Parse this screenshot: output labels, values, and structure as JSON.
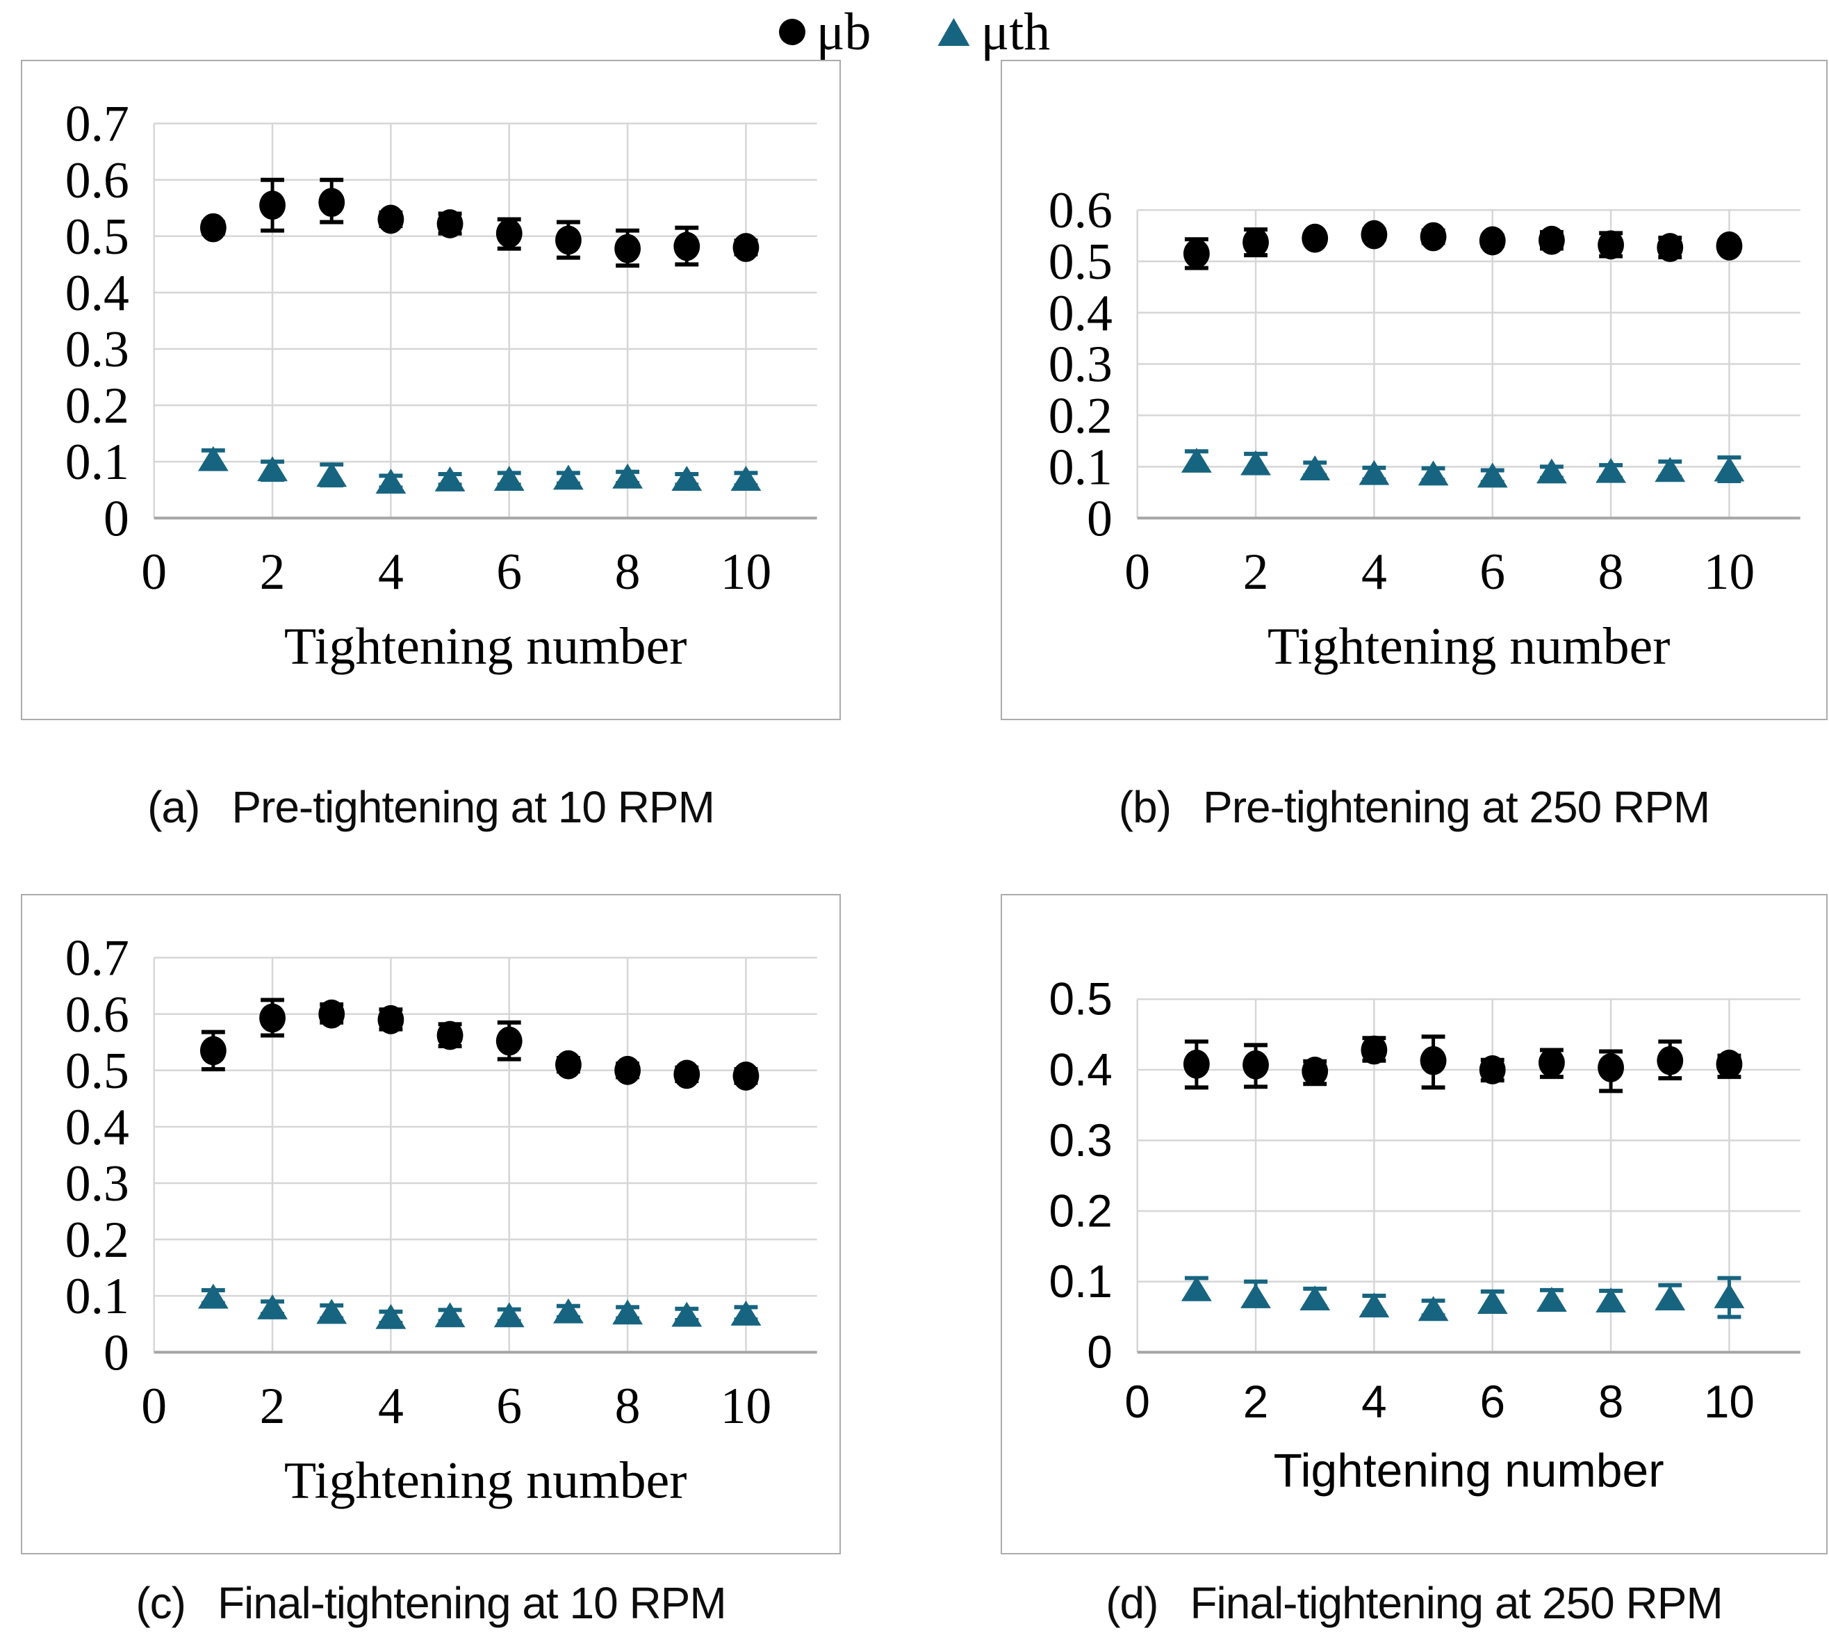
{
  "colors": {
    "mu_b": "#000000",
    "mu_th": "#176480",
    "grid": "#d6d6d6",
    "axis": "#a6a6a6",
    "box_border": "#ababab"
  },
  "legend": {
    "items": [
      {
        "label": "μb",
        "marker": "circle",
        "color": "#000000"
      },
      {
        "label": "μth",
        "marker": "triangle",
        "color": "#176480"
      }
    ]
  },
  "chart_data": [
    {
      "id": "a",
      "type": "scatter",
      "caption_tag": "(a)",
      "caption_text": "Pre-tightening at 10 RPM",
      "xlabel": "Tightening number",
      "font": "serif",
      "plot_top": 90,
      "x": [
        1,
        2,
        3,
        4,
        5,
        6,
        7,
        8,
        9,
        10
      ],
      "xlim": [
        0,
        11.2
      ],
      "ylim": [
        0,
        0.7
      ],
      "xticks": [
        "0",
        "2",
        "4",
        "6",
        "8",
        "10"
      ],
      "yticks": [
        "0",
        "0.1",
        "0.2",
        "0.3",
        "0.4",
        "0.5",
        "0.6",
        "0.7"
      ],
      "series": [
        {
          "name": "μb",
          "marker": "circle",
          "color": "#000000",
          "values": [
            0.515,
            0.555,
            0.56,
            0.53,
            0.522,
            0.505,
            0.493,
            0.478,
            0.482,
            0.48
          ],
          "err_low": [
            0.505,
            0.51,
            0.525,
            0.518,
            0.505,
            0.478,
            0.462,
            0.448,
            0.45,
            0.468
          ],
          "err_high": [
            0.525,
            0.6,
            0.6,
            0.542,
            0.54,
            0.53,
            0.525,
            0.51,
            0.515,
            0.492
          ]
        },
        {
          "name": "μth",
          "marker": "triangle",
          "color": "#176480",
          "values": [
            0.103,
            0.085,
            0.075,
            0.063,
            0.067,
            0.068,
            0.07,
            0.072,
            0.068,
            0.068
          ],
          "err_low": [
            0.09,
            0.068,
            0.058,
            0.054,
            0.059,
            0.059,
            0.061,
            0.062,
            0.059,
            0.058
          ],
          "err_high": [
            0.12,
            0.1,
            0.095,
            0.075,
            0.078,
            0.08,
            0.08,
            0.082,
            0.078,
            0.08
          ]
        }
      ]
    },
    {
      "id": "b",
      "type": "scatter",
      "caption_tag": "(b)",
      "caption_text": "Pre-tightening at 250 RPM",
      "xlabel": "Tightening number",
      "font": "serif",
      "plot_top": 215,
      "x": [
        1,
        2,
        3,
        4,
        5,
        6,
        7,
        8,
        9,
        10
      ],
      "xlim": [
        0,
        11.2
      ],
      "ylim": [
        0,
        0.6
      ],
      "xticks": [
        "0",
        "2",
        "4",
        "6",
        "8",
        "10"
      ],
      "yticks": [
        "0",
        "0.1",
        "0.2",
        "0.3",
        "0.4",
        "0.5",
        "0.6"
      ],
      "series": [
        {
          "name": "μb",
          "marker": "circle",
          "color": "#000000",
          "values": [
            0.515,
            0.537,
            0.545,
            0.552,
            0.548,
            0.54,
            0.541,
            0.532,
            0.527,
            0.53
          ],
          "err_low": [
            0.487,
            0.512,
            0.537,
            0.542,
            0.536,
            0.53,
            0.525,
            0.51,
            0.508,
            0.52
          ],
          "err_high": [
            0.543,
            0.562,
            0.553,
            0.562,
            0.56,
            0.55,
            0.557,
            0.555,
            0.546,
            0.54
          ]
        },
        {
          "name": "μth",
          "marker": "triangle",
          "color": "#176480",
          "values": [
            0.11,
            0.105,
            0.095,
            0.086,
            0.085,
            0.081,
            0.089,
            0.09,
            0.092,
            0.093
          ],
          "err_low": [
            0.095,
            0.088,
            0.083,
            0.075,
            0.074,
            0.07,
            0.078,
            0.078,
            0.08,
            0.072
          ],
          "err_high": [
            0.13,
            0.125,
            0.108,
            0.098,
            0.097,
            0.093,
            0.1,
            0.103,
            0.11,
            0.118
          ]
        }
      ]
    },
    {
      "id": "c",
      "type": "scatter",
      "caption_tag": "(c)",
      "caption_text": "Final-tightening at 10 RPM",
      "xlabel": "Tightening number",
      "font": "serif",
      "plot_top": 90,
      "x": [
        1,
        2,
        3,
        4,
        5,
        6,
        7,
        8,
        9,
        10
      ],
      "xlim": [
        0,
        11.2
      ],
      "ylim": [
        0,
        0.7
      ],
      "xticks": [
        "0",
        "2",
        "4",
        "6",
        "8",
        "10"
      ],
      "yticks": [
        "0",
        "0.1",
        "0.2",
        "0.3",
        "0.4",
        "0.5",
        "0.6",
        "0.7"
      ],
      "series": [
        {
          "name": "μb",
          "marker": "circle",
          "color": "#000000",
          "values": [
            0.535,
            0.593,
            0.6,
            0.59,
            0.562,
            0.552,
            0.51,
            0.5,
            0.493,
            0.49
          ],
          "err_low": [
            0.502,
            0.562,
            0.585,
            0.573,
            0.543,
            0.52,
            0.498,
            0.488,
            0.481,
            0.478
          ],
          "err_high": [
            0.568,
            0.625,
            0.617,
            0.608,
            0.582,
            0.585,
            0.522,
            0.512,
            0.505,
            0.502
          ]
        },
        {
          "name": "μth",
          "marker": "triangle",
          "color": "#176480",
          "values": [
            0.097,
            0.078,
            0.07,
            0.061,
            0.064,
            0.064,
            0.071,
            0.069,
            0.065,
            0.067
          ],
          "err_low": [
            0.087,
            0.068,
            0.06,
            0.052,
            0.055,
            0.055,
            0.062,
            0.06,
            0.057,
            0.058
          ],
          "err_high": [
            0.11,
            0.09,
            0.083,
            0.072,
            0.075,
            0.076,
            0.082,
            0.08,
            0.077,
            0.08
          ]
        }
      ]
    },
    {
      "id": "d",
      "type": "scatter",
      "caption_tag": "(d)",
      "caption_text": "Final-tightening at 250 RPM",
      "xlabel": "Tightening number",
      "font": "sans",
      "plot_top": 150,
      "x": [
        1,
        2,
        3,
        4,
        5,
        6,
        7,
        8,
        9,
        10
      ],
      "xlim": [
        0,
        11.2
      ],
      "ylim": [
        0,
        0.5
      ],
      "xticks": [
        "0",
        "2",
        "4",
        "6",
        "8",
        "10"
      ],
      "yticks": [
        "0",
        "0.1",
        "0.2",
        "0.3",
        "0.4",
        "0.5"
      ],
      "series": [
        {
          "name": "μb",
          "marker": "circle",
          "color": "#000000",
          "values": [
            0.408,
            0.407,
            0.398,
            0.428,
            0.413,
            0.4,
            0.41,
            0.403,
            0.413,
            0.408
          ],
          "err_low": [
            0.375,
            0.376,
            0.38,
            0.413,
            0.375,
            0.385,
            0.39,
            0.37,
            0.388,
            0.39
          ],
          "err_high": [
            0.44,
            0.435,
            0.412,
            0.445,
            0.447,
            0.414,
            0.428,
            0.426,
            0.44,
            0.42
          ]
        },
        {
          "name": "μth",
          "marker": "triangle",
          "color": "#176480",
          "values": [
            0.088,
            0.078,
            0.075,
            0.065,
            0.06,
            0.07,
            0.073,
            0.072,
            0.075,
            0.078
          ],
          "err_low": [
            0.077,
            0.066,
            0.065,
            0.056,
            0.052,
            0.058,
            0.062,
            0.062,
            0.063,
            0.05
          ],
          "err_high": [
            0.105,
            0.1,
            0.09,
            0.08,
            0.073,
            0.086,
            0.088,
            0.087,
            0.095,
            0.105
          ]
        }
      ]
    }
  ]
}
